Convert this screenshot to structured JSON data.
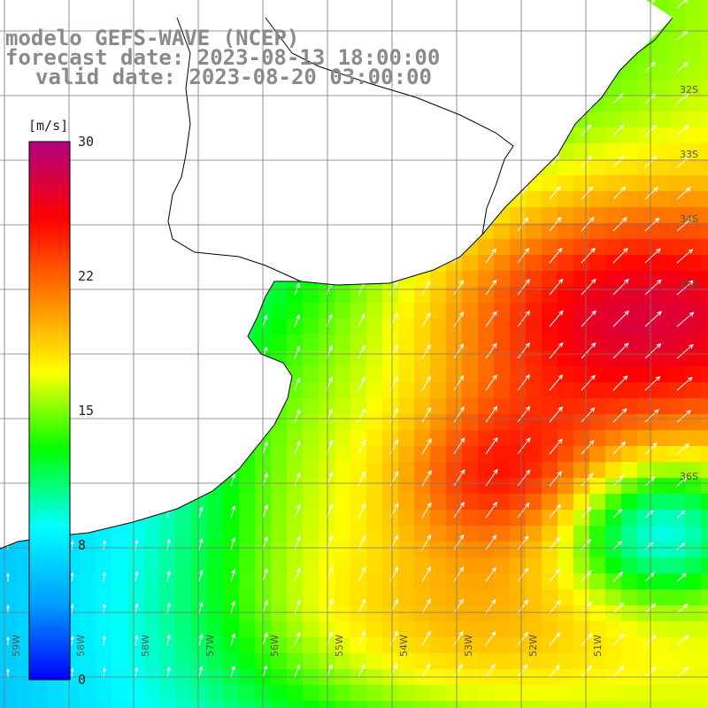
{
  "titles": {
    "model": "modelo GEFS-WAVE (NCEP)",
    "forecast": "forecast date: 2023-08-13 18:00:00",
    "valid": "valid date: 2023-08-20 03:00:00"
  },
  "colorbar": {
    "unit": "[m/s]",
    "min": 0,
    "max": 30,
    "ticks": [
      "0",
      "8",
      "15",
      "22",
      "30"
    ],
    "colors": [
      "#0000ff",
      "#00a0ff",
      "#00ffff",
      "#00ff00",
      "#ffff00",
      "#ff8000",
      "#ff0000",
      "#b00080"
    ]
  },
  "axes": {
    "lon_labels": [
      "59W",
      "58W",
      "58W",
      "57W",
      "56W",
      "55W",
      "54W",
      "53W",
      "52W",
      "51W"
    ],
    "lat_labels": [
      "32S",
      "33S",
      "34S",
      "35S",
      "36S"
    ]
  },
  "colors": {
    "land": "#ffffff",
    "coast": "#000000",
    "grid": "#777777",
    "arrows": "#ffffff"
  }
}
